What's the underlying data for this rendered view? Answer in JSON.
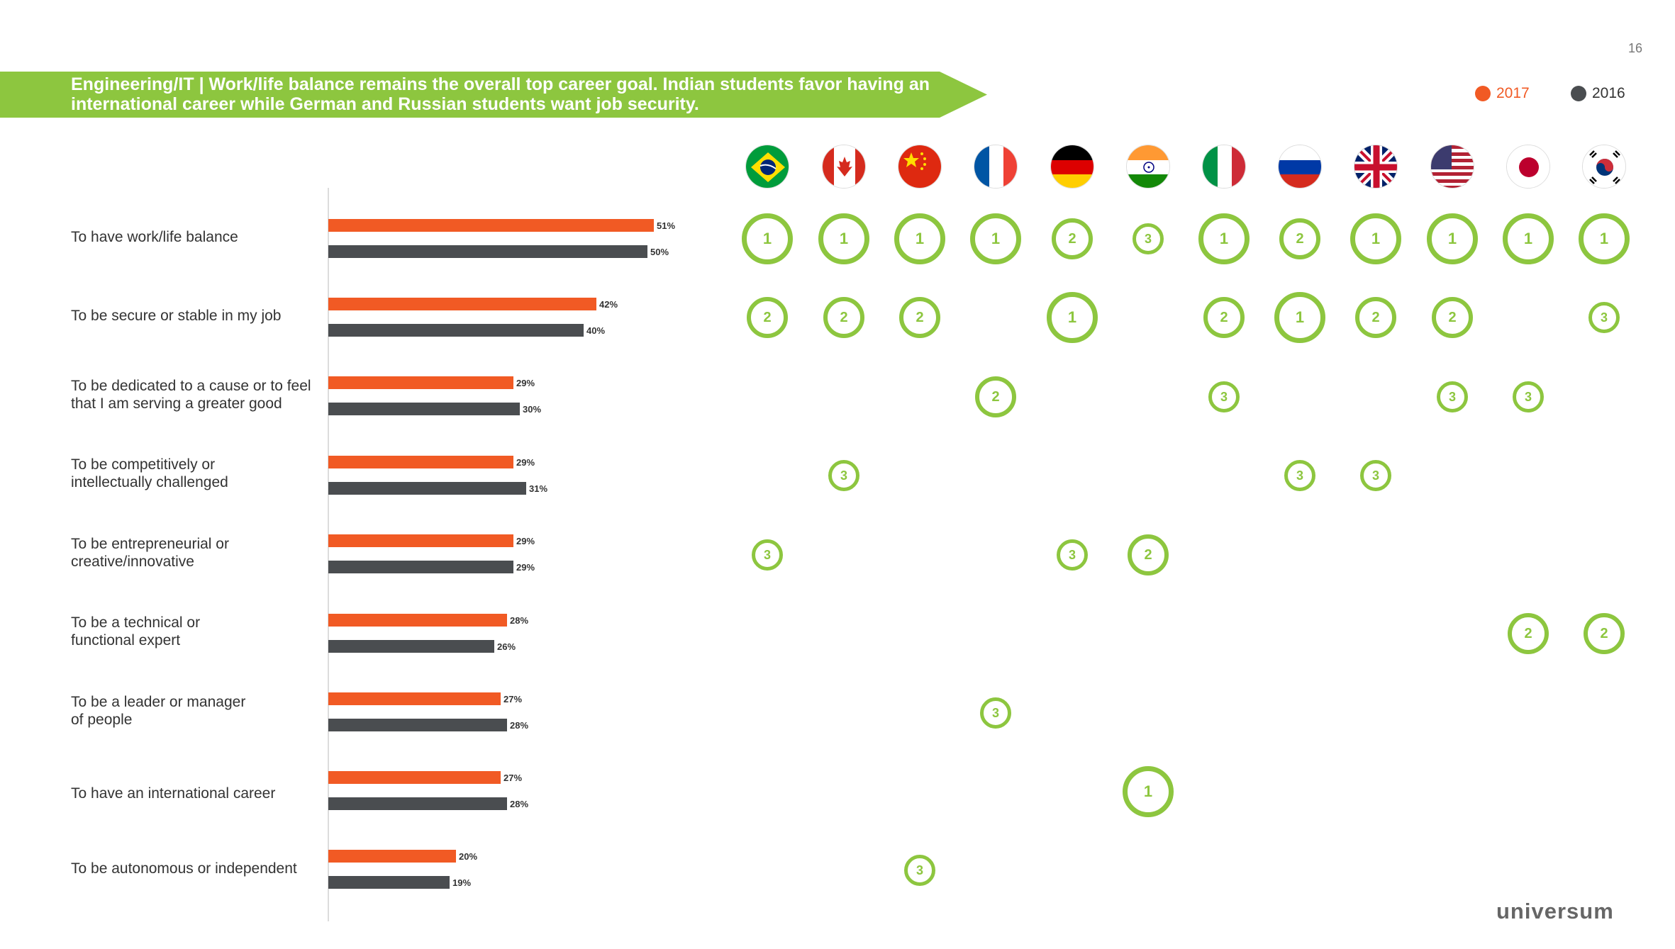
{
  "page_number": "16",
  "title": "Engineering/IT | Work/life balance remains the overall top career goal. Indian students favor having an international career while German and Russian students want job security.",
  "colors": {
    "accent_green": "#8dc63f",
    "y2017": "#f15a24",
    "y2016": "#4a4d50"
  },
  "legend": [
    {
      "label": "2017",
      "color": "#f15a24"
    },
    {
      "label": "2016",
      "color": "#4a4d50"
    }
  ],
  "brand": "universum",
  "countries": [
    {
      "name": "Brazil",
      "icon": "brazil-flag-icon"
    },
    {
      "name": "Canada",
      "icon": "canada-flag-icon"
    },
    {
      "name": "China",
      "icon": "china-flag-icon"
    },
    {
      "name": "France",
      "icon": "france-flag-icon"
    },
    {
      "name": "Germany",
      "icon": "germany-flag-icon"
    },
    {
      "name": "India",
      "icon": "india-flag-icon"
    },
    {
      "name": "Italy",
      "icon": "italy-flag-icon"
    },
    {
      "name": "Russia",
      "icon": "russia-flag-icon"
    },
    {
      "name": "United Kingdom",
      "icon": "uk-flag-icon"
    },
    {
      "name": "United States",
      "icon": "usa-flag-icon"
    },
    {
      "name": "Japan",
      "icon": "japan-flag-icon"
    },
    {
      "name": "South Korea",
      "icon": "south-korea-flag-icon"
    }
  ],
  "chart_data": {
    "type": "bar",
    "orientation": "horizontal",
    "categories": [
      "To have work/life balance",
      "To be secure or stable in my job",
      "To be dedicated to a cause or to feel that I am serving a greater good",
      "To be competitively or intellectually challenged",
      "To be entrepreneurial or creative/innovative",
      "To be a technical or functional expert",
      "To be a leader or manager of people",
      "To have an international career",
      "To be autonomous or independent"
    ],
    "series": [
      {
        "name": "2017",
        "values": [
          51,
          42,
          29,
          29,
          29,
          28,
          27,
          27,
          20
        ],
        "labels": [
          "51%",
          "42%",
          "29%",
          "29%",
          "29%",
          "28%",
          "27%",
          "27%",
          "20%"
        ]
      },
      {
        "name": "2016",
        "values": [
          50,
          40,
          30,
          31,
          29,
          26,
          28,
          28,
          19
        ],
        "labels": [
          "50%",
          "40%",
          "30%",
          "31%",
          "29%",
          "26%",
          "28%",
          "28%",
          "19%"
        ]
      }
    ],
    "xlim": [
      0,
      55
    ],
    "rankings": [
      [
        "1",
        "1",
        "1",
        "1",
        "2",
        "3",
        "1",
        "2",
        "1",
        "1",
        "1",
        "1"
      ],
      [
        "2",
        "2",
        "2",
        "",
        "1",
        "",
        "2",
        "1",
        "2",
        "2",
        "",
        "3"
      ],
      [
        "",
        "",
        "",
        "2",
        "",
        "",
        "3",
        "",
        "",
        "3",
        "3",
        ""
      ],
      [
        "",
        "3",
        "",
        "",
        "",
        "",
        "",
        "3",
        "3",
        "",
        "",
        ""
      ],
      [
        "3",
        "",
        "",
        "",
        "3",
        "2",
        "",
        "",
        "",
        "",
        "",
        ""
      ],
      [
        "",
        "",
        "",
        "",
        "",
        "",
        "",
        "",
        "",
        "",
        "2",
        "2"
      ],
      [
        "",
        "",
        "",
        "3",
        "",
        "",
        "",
        "",
        "",
        "",
        "",
        ""
      ],
      [
        "",
        "",
        "",
        "",
        "",
        "1",
        "",
        "",
        "",
        "",
        "",
        ""
      ],
      [
        "",
        "",
        "3",
        "",
        "",
        "",
        "",
        "",
        "",
        "",
        "",
        ""
      ]
    ]
  }
}
